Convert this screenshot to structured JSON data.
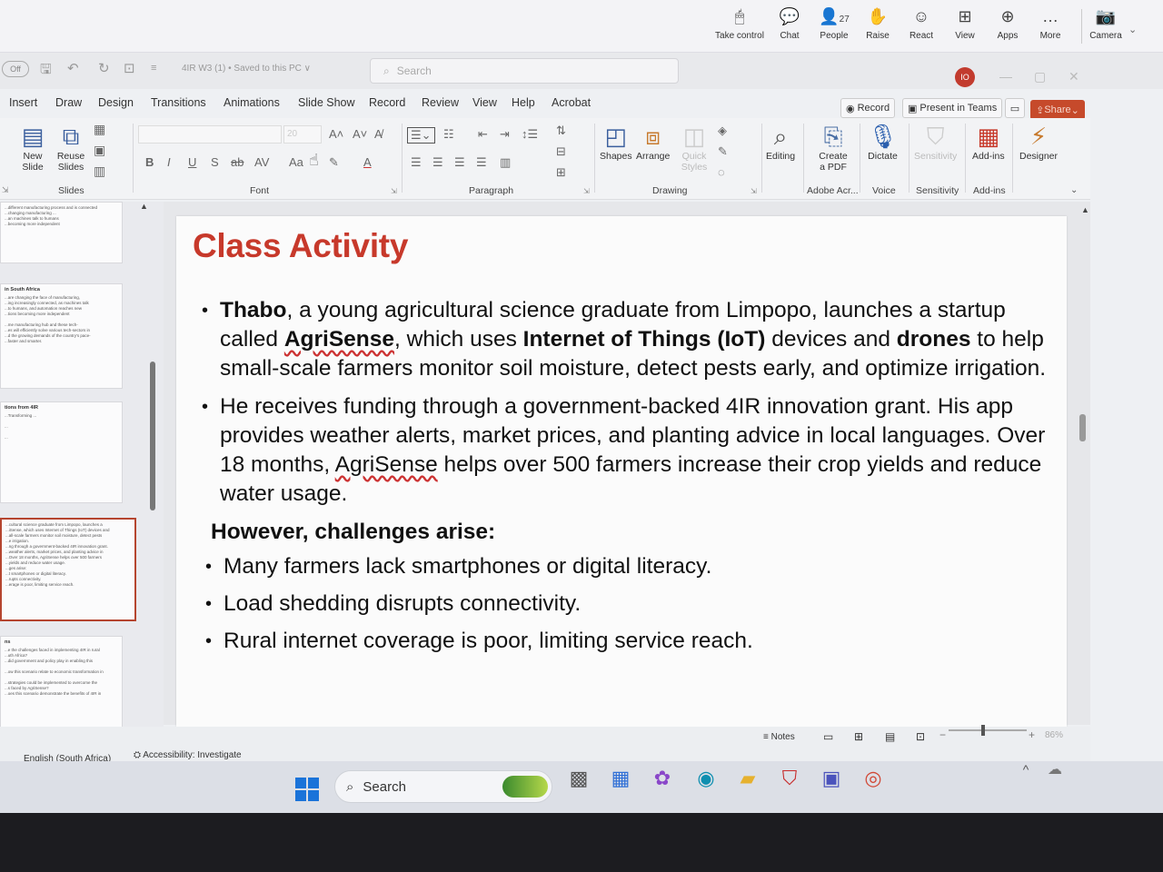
{
  "teams_bar": {
    "buttons": [
      {
        "label": "Take control",
        "icon": "take-control-icon",
        "glyph": "🖱"
      },
      {
        "label": "Chat",
        "icon": "chat-icon",
        "glyph": "💬"
      },
      {
        "label": "People",
        "icon": "people-icon",
        "glyph": "👤",
        "count": "27"
      },
      {
        "label": "Raise",
        "icon": "raise-hand-icon",
        "glyph": "✋"
      },
      {
        "label": "React",
        "icon": "react-icon",
        "glyph": "☺"
      },
      {
        "label": "View",
        "icon": "view-icon",
        "glyph": "⊞"
      },
      {
        "label": "Apps",
        "icon": "apps-icon",
        "glyph": "⊕"
      },
      {
        "label": "More",
        "icon": "more-icon",
        "glyph": "…"
      },
      {
        "label": "Camera",
        "icon": "camera-icon",
        "glyph": "📷"
      }
    ]
  },
  "title_bar": {
    "autosave": "Off",
    "doc_title": "4IR W3 (1) • Saved to this PC ∨",
    "search_placeholder": "Search",
    "avatar_initials": "IO"
  },
  "ribbon": {
    "tabs": [
      "Insert",
      "Draw",
      "Design",
      "Transitions",
      "Animations",
      "Slide Show",
      "Record",
      "Review",
      "View",
      "Help",
      "Acrobat"
    ],
    "record_label": "Record",
    "present_label": "Present in Teams",
    "share_label": "Share",
    "slides_group": {
      "new_slide": "New Slide",
      "reuse_slides": "Reuse Slides",
      "label": "Slides"
    },
    "font_group": {
      "size": "20",
      "label": "Font"
    },
    "paragraph_label": "Paragraph",
    "drawing_group": {
      "shapes": "Shapes",
      "arrange": "Arrange",
      "quick_styles": "Quick Styles",
      "label": "Drawing"
    },
    "editing": "Editing",
    "create_pdf": "Create a PDF",
    "adobe_label": "Adobe Acr...",
    "dictate": "Dictate",
    "voice_label": "Voice",
    "sensitivity": "Sensitivity",
    "sensitivity_label": "Sensitivity",
    "addins": "Add-ins",
    "addins_label": "Add-ins",
    "designer": "Designer"
  },
  "thumbnails": [
    {
      "title": "",
      "lines": [
        "...different manufacturing process and is connected",
        "...changing manufacturing ...",
        "...an machines talk to humans",
        "...becoming more independent"
      ]
    },
    {
      "title": "in South Africa",
      "lines": [
        "...are changing the face of manufacturing,",
        "...ing increasingly connected, as machines talk",
        "...to humans, and automation reaches new",
        "...tions becoming more independent",
        "",
        "...me manufacturing hub and these tech-",
        "...es will efficiently solve various tech-sectors in",
        "...d the growing demands of the country's pace-",
        "...faster and smarter."
      ]
    },
    {
      "title": "tions from 4IR",
      "lines": [
        "...Transforming ...",
        "",
        "...",
        "",
        "..."
      ]
    },
    {
      "title": "",
      "lines": [
        "...cultural science graduate from Limpopo, launches a",
        "...iSense, which uses Internet of Things (IoT) devices and",
        "...all-scale farmers monitor soil moisture, detect pests",
        "...e irrigation.",
        "...ng through a government-backed 4IR innovation grant.",
        "...weather alerts, market prices, and planting advice in",
        "...Over 18 months, AgriSense helps over 500 farmers",
        "...yields and reduce water usage.",
        "...ges arise:",
        "...t smartphones or digital literacy.",
        "...rupts connectivity.",
        "...erage is poor, limiting service reach."
      ]
    },
    {
      "title": "ns",
      "lines": [
        "...e the challenges faced in implementing 4IR in rural",
        "...uth Africa?",
        "...did government and policy play in enabling this",
        "",
        "...ow this scenario relate to economic transformation in",
        "",
        "...strategies could be implemented to overcome the",
        "...s faced by AgriSense?",
        "...oes this scenario demonstrate the benefits of 4IR in"
      ]
    }
  ],
  "slide": {
    "title": "Class Activity",
    "bullet1": {
      "name": "Thabo",
      "t1": ", a young agricultural science graduate from Limpopo, launches a startup called ",
      "brand": "AgriSense",
      "t2": ", which uses ",
      "iot": "Internet of Things (IoT)",
      "t3": " devices and ",
      "drones": "drones",
      "t4": " to help small-scale farmers monitor soil moisture, detect pests early, and optimize irrigation."
    },
    "bullet2": {
      "t1": "He receives funding through a government-backed 4IR innovation grant. His app provides weather alerts, market prices, and planting advice in local languages. Over 18 months, ",
      "brand": "AgriSense",
      "t2": " helps over 500 farmers increase their crop yields and reduce water usage."
    },
    "challenges_heading": "However, challenges arise:",
    "challenges": [
      "Many farmers lack smartphones or digital literacy.",
      "Load shedding disrupts connectivity.",
      "Rural internet coverage is poor, limiting service reach."
    ]
  },
  "status_bar": {
    "language": "English (South Africa)",
    "accessibility": "Accessibility: Investigate",
    "notes": "Notes",
    "zoom": "86%"
  },
  "taskbar": {
    "search_label": "Search"
  },
  "colors": {
    "title_red": "#c7392b",
    "share_orange": "#c64a2b",
    "windows_blue": "#1a73d9"
  }
}
